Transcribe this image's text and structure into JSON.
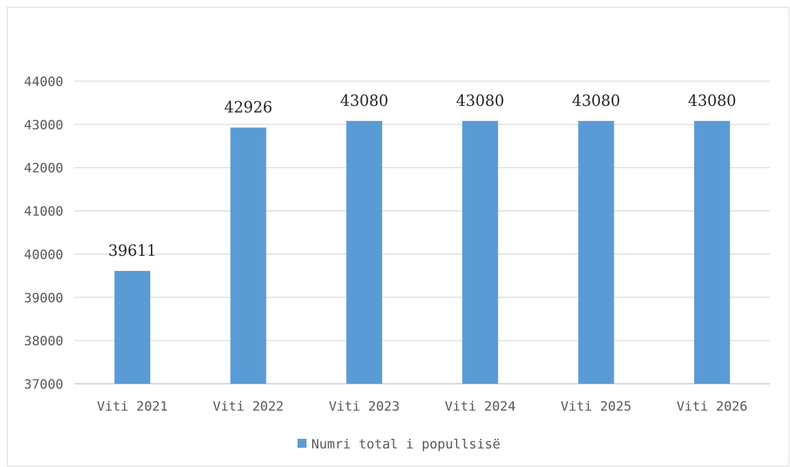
{
  "chart_data": {
    "type": "bar",
    "categories": [
      "Viti 2021",
      "Viti 2022",
      "Viti 2023",
      "Viti 2024",
      "Viti 2025",
      "Viti 2026"
    ],
    "series": [
      {
        "name": "Numri total i popullsisë",
        "values": [
          39611,
          42926,
          43080,
          43080,
          43080,
          43080
        ],
        "color": "#5b9bd5"
      }
    ],
    "data_labels": [
      "39611",
      "42926",
      "43080",
      "43080",
      "43080",
      "43080"
    ],
    "ylim": [
      37000,
      44000
    ],
    "yticks": [
      37000,
      38000,
      39000,
      40000,
      41000,
      42000,
      43000,
      44000
    ],
    "grid": true,
    "legend_position": "bottom",
    "gridline_color": "#d9d9d9",
    "axis_color": "#bfbfbf"
  }
}
